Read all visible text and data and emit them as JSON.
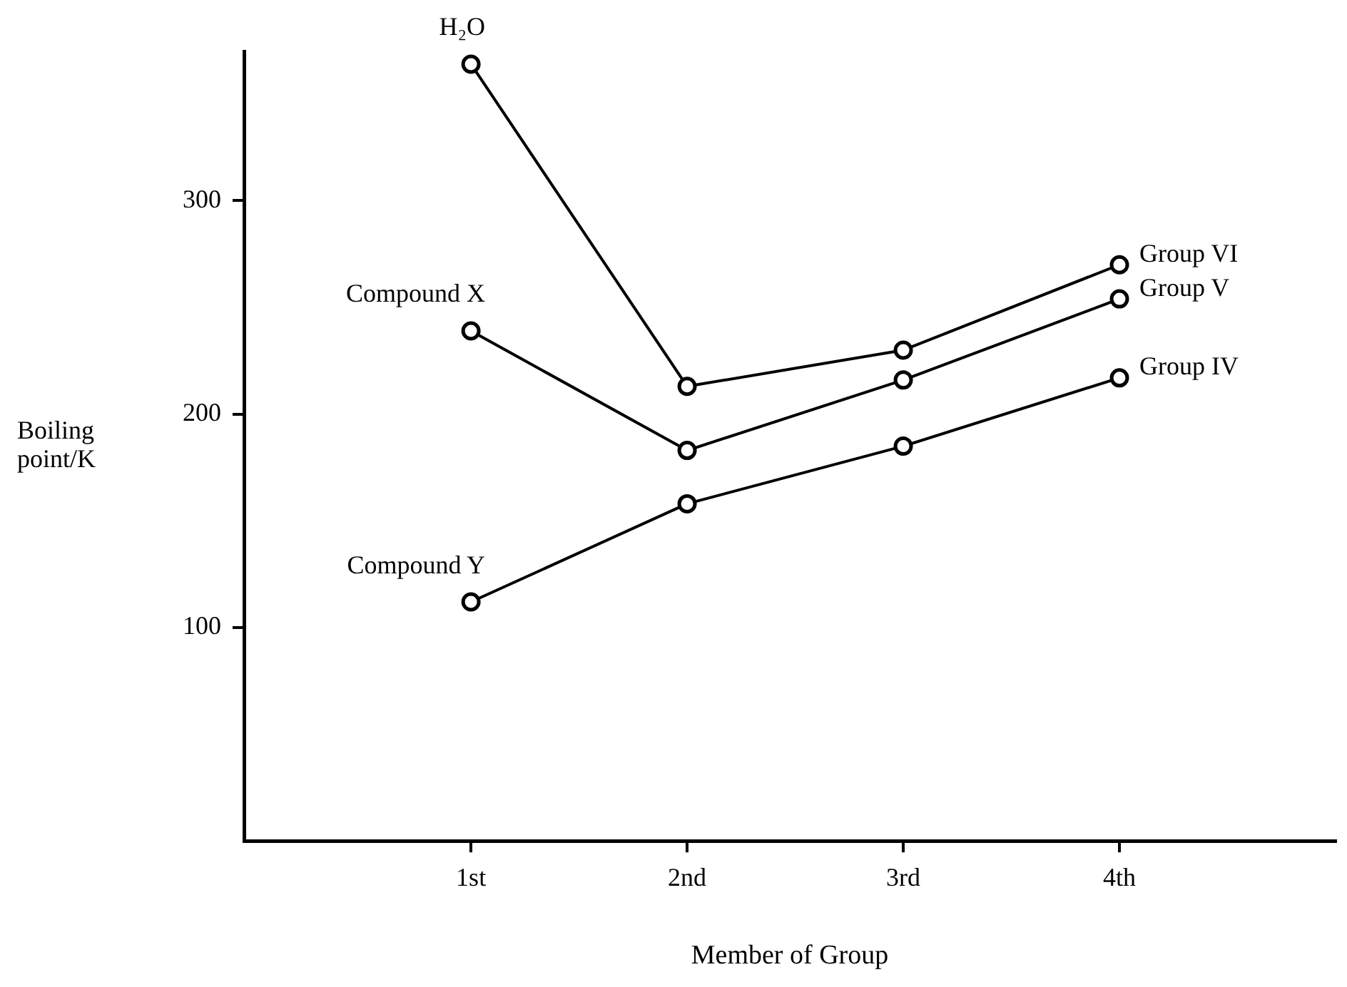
{
  "chart_data": {
    "type": "line",
    "xlabel": "Member of Group",
    "ylabel": "Boiling point/K",
    "categories": [
      "1st",
      "2nd",
      "3rd",
      "4th"
    ],
    "series": [
      {
        "name": "Group VI",
        "color": "#000000",
        "values": [
          364,
          213,
          230,
          270
        ]
      },
      {
        "name": "Group V",
        "color": "#000000",
        "values": [
          239,
          183,
          216,
          254
        ]
      },
      {
        "name": "Group IV",
        "color": "#000000",
        "values": [
          112,
          158,
          185,
          217
        ]
      }
    ],
    "ylim": [
      0,
      370
    ],
    "yticks": [
      100,
      200,
      300
    ],
    "marker": "circle",
    "line_style": "solid",
    "annotations": [
      {
        "text": "H₂O",
        "x": "1st",
        "y": 364
      },
      {
        "text": "Compound X",
        "x": "1st",
        "y": 239
      },
      {
        "text": "Compound Y",
        "x": "1st",
        "y": 112
      }
    ]
  }
}
